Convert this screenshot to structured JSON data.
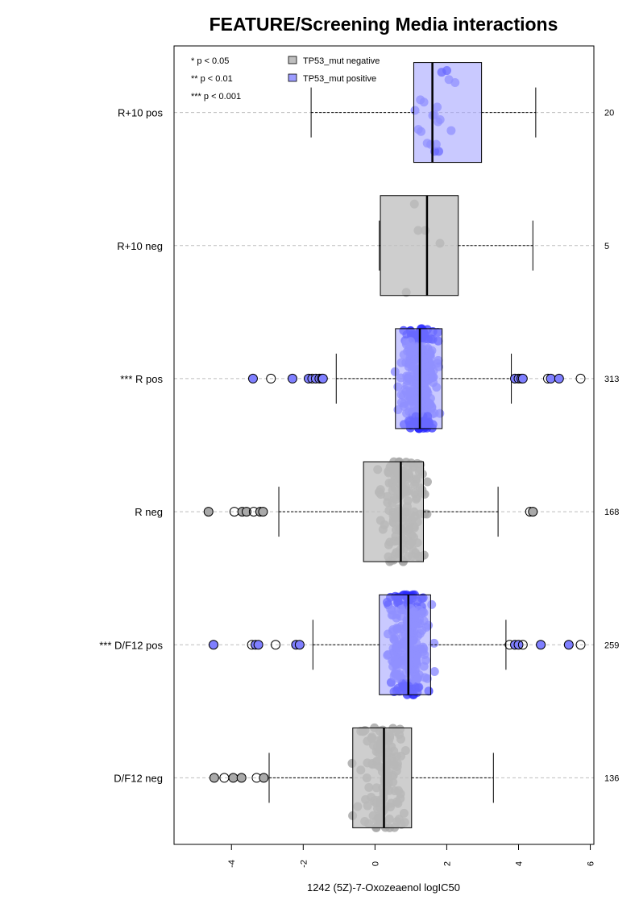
{
  "chart_data": {
    "type": "box",
    "orientation": "horizontal",
    "title": "FEATURE/Screening Media interactions",
    "xlabel": "1242 (5Z)-7-Oxozeaenol logIC50",
    "xlim": [
      -5.6,
      6.1
    ],
    "x_ticks": [
      -4,
      -2,
      0,
      2,
      4,
      6
    ],
    "x_tick_labels": [
      "-4",
      "-2",
      "0",
      "2",
      "4",
      "6"
    ],
    "grid": "horizontal dashed lines at each group",
    "legend": {
      "placement": "top-left",
      "significance": [
        "* p < 0.05",
        "** p < 0.01",
        "*** p < 0.001"
      ],
      "entries": [
        {
          "label": "TP53_mut negative",
          "color": "#bebebe"
        },
        {
          "label": "TP53_mut positive",
          "color": "#9c9cff"
        }
      ]
    },
    "colors": {
      "negative_box": "#bebebe",
      "positive_box": "#9c9cff",
      "negative_point": "#a9a9a9",
      "positive_point": "#7f7fff",
      "positive_saturated_point": "#2a2aff"
    },
    "groups": [
      {
        "label": "R+10 pos",
        "n": "20",
        "status": "positive",
        "whisker_low": -1.78,
        "q1": 1.08,
        "median": 1.6,
        "q3": 2.97,
        "whisker_high": 4.48,
        "outliers_open": []
      },
      {
        "label": "R+10 neg",
        "n": "5",
        "status": "negative",
        "whisker_low": 0.12,
        "q1": 0.15,
        "median": 1.45,
        "q3": 2.32,
        "whisker_high": 4.4,
        "outliers_open": []
      },
      {
        "label": "*** R pos",
        "n": "313",
        "status": "positive",
        "whisker_low": -1.08,
        "q1": 0.57,
        "median": 1.25,
        "q3": 1.87,
        "whisker_high": 3.8,
        "outliers_open": [
          -3.4,
          -2.9,
          -2.3,
          -1.85,
          -1.75,
          -1.65,
          -1.55,
          -1.48,
          -1.45,
          3.9,
          4.0,
          4.08,
          4.12,
          4.82,
          4.9,
          5.13,
          5.73
        ]
      },
      {
        "label": "R neg",
        "n": "168",
        "status": "negative",
        "whisker_low": -2.68,
        "q1": -0.32,
        "median": 0.72,
        "q3": 1.35,
        "whisker_high": 3.43,
        "outliers_open": [
          -4.64,
          -3.92,
          -3.7,
          -3.58,
          -3.38,
          -3.2,
          -3.12,
          4.32,
          4.4
        ]
      },
      {
        "label": "*** D/F12 pos",
        "n": "259",
        "status": "positive",
        "whisker_low": -1.73,
        "q1": 0.12,
        "median": 0.93,
        "q3": 1.55,
        "whisker_high": 3.65,
        "outliers_open": [
          -4.5,
          -3.43,
          -3.33,
          -3.25,
          -2.77,
          -2.2,
          -2.1,
          3.75,
          3.9,
          4.0,
          4.12,
          4.62,
          5.4,
          5.73
        ]
      },
      {
        "label": "D/F12 neg",
        "n": "136",
        "status": "negative",
        "whisker_low": -2.95,
        "q1": -0.62,
        "median": 0.25,
        "q3": 1.02,
        "whisker_high": 3.3,
        "outliers_open": [
          -4.48,
          -4.2,
          -3.95,
          -3.72,
          -3.3,
          -3.1
        ]
      }
    ]
  }
}
